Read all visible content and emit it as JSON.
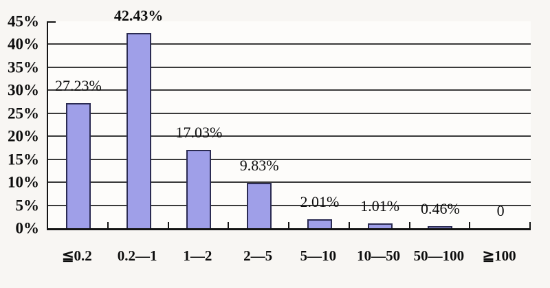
{
  "figure": {
    "background": "#f8f6f3",
    "plot_background": "#fdfcfa"
  },
  "chart_data": {
    "type": "bar",
    "categories": [
      "≦0.2",
      "0.2—1",
      "1—2",
      "2—5",
      "5—10",
      "10—50",
      "50—100",
      "≧100"
    ],
    "values": [
      27.23,
      42.43,
      17.03,
      9.83,
      2.01,
      1.01,
      0.46,
      0
    ],
    "data_labels": [
      "27.23%",
      "42.43%",
      "17.03%",
      "9.83%",
      "2.01%",
      "1.01%",
      "0.46%",
      "0"
    ],
    "bold_label_index": 1,
    "ylim": [
      0,
      45
    ],
    "ytick_step": 5,
    "ytick_labels": [
      "0%",
      "5%",
      "10%",
      "15%",
      "20%",
      "25%",
      "30%",
      "35%",
      "40%",
      "45%"
    ],
    "grid": true,
    "legend_position": "none",
    "colors": {
      "bar_fill": "#9f9fe8",
      "bar_border": "#2b2b52",
      "gridline": "#3a3a3a",
      "axis": "#141414",
      "text": "#0d0d0d"
    }
  }
}
